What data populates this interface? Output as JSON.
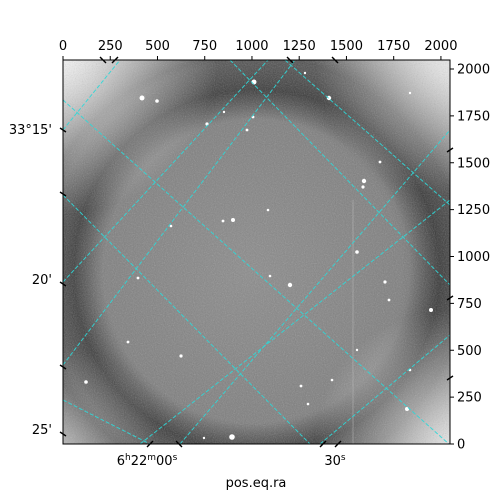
{
  "chart_data": {
    "type": "image",
    "xlabel": "pos.eq.ra",
    "ylabel": "",
    "pixel_axes": {
      "x_ticks": [
        0,
        250,
        500,
        750,
        1000,
        1250,
        1500,
        1750,
        2000
      ],
      "y_ticks": [
        0,
        250,
        500,
        750,
        1000,
        1250,
        1500,
        1750,
        2000
      ],
      "xlim": [
        0,
        2048
      ],
      "ylim": [
        0,
        2048
      ]
    },
    "world_axes": {
      "ra_tick_labels": [
        "6h22m00s",
        "30s"
      ],
      "dec_tick_labels": [
        "33°15'",
        "20'",
        "25'"
      ]
    },
    "grid": true,
    "grid_color": "#2fd8d8",
    "image_description_colormap": "grayscale"
  }
}
